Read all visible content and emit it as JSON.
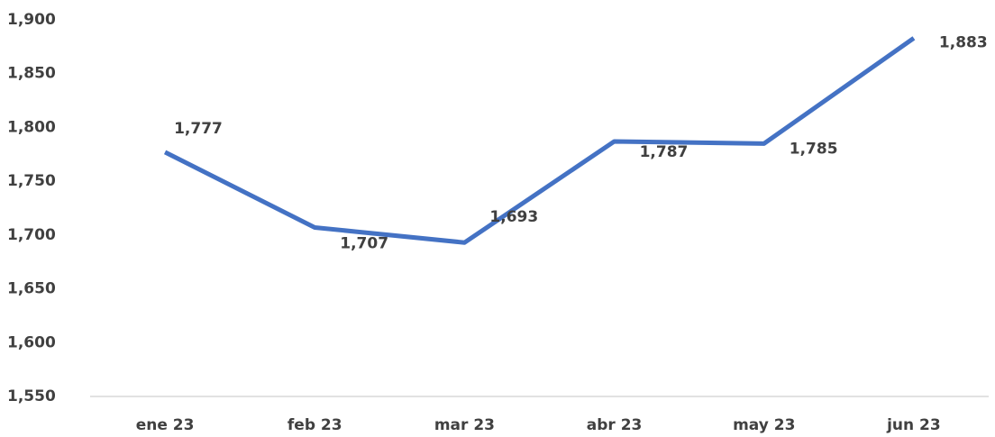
{
  "chart_data": {
    "type": "line",
    "categories": [
      "ene 23",
      "feb 23",
      "mar 23",
      "abr 23",
      "may 23",
      "jun 23"
    ],
    "series": [
      {
        "values": [
          1777,
          1707,
          1693,
          1787,
          1785,
          1883
        ],
        "value_labels": [
          "1,777",
          "1,707",
          "1,693",
          "1,787",
          "1,785",
          "1,883"
        ],
        "color": "#4472c4"
      }
    ],
    "ylim": [
      1550,
      1900
    ],
    "yticks": [
      {
        "value": 1550,
        "label": "1,550"
      },
      {
        "value": 1600,
        "label": "1,600"
      },
      {
        "value": 1650,
        "label": "1,650"
      },
      {
        "value": 1700,
        "label": "1,700"
      },
      {
        "value": 1750,
        "label": "1,750"
      },
      {
        "value": 1800,
        "label": "1,800"
      },
      {
        "value": 1850,
        "label": "1,850"
      },
      {
        "value": 1900,
        "label": "1,900"
      }
    ],
    "grid": false
  }
}
